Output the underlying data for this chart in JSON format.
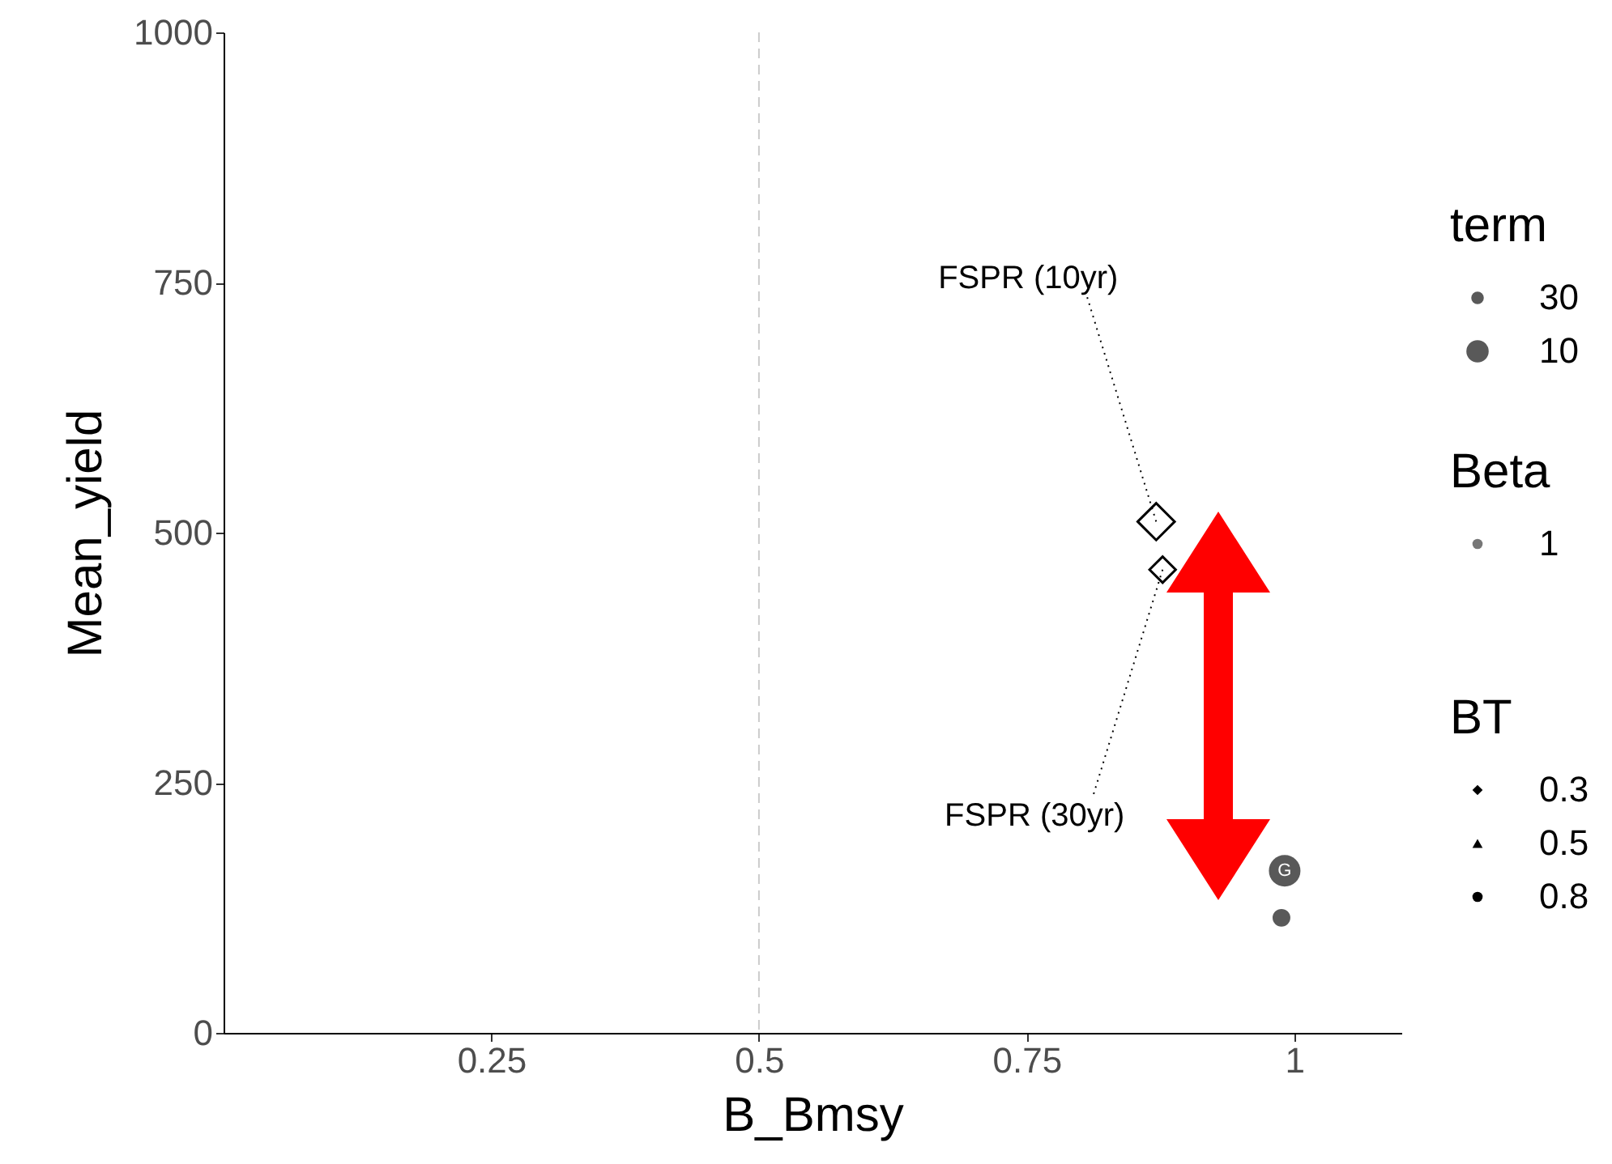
{
  "chart_data": {
    "type": "scatter",
    "xlabel": "B_Bmsy",
    "ylabel": "Mean_yield",
    "xlim": [
      0,
      1.1
    ],
    "xticks": [
      0.25,
      0.5,
      0.75,
      1
    ],
    "ylim": [
      0,
      1000
    ],
    "yticks": [
      0,
      250,
      500,
      750,
      1000
    ],
    "grid": false,
    "legend": "right",
    "legend_title": "term",
    "ref_lines": [
      {
        "axis": "x",
        "value": 0.5,
        "color": "#cccccc",
        "line_style": "dashed"
      }
    ],
    "series": [
      {
        "name": "FSPR (10yr)",
        "marker": "diamond",
        "color": "#000000",
        "x": [
          0.871
        ],
        "values": [
          511
        ]
      },
      {
        "name": "FSPR (30yr)",
        "marker": "diamond",
        "color": "#000000",
        "x": [
          0.877
        ],
        "values": [
          463
        ]
      },
      {
        "name": "30",
        "marker": "circle",
        "color": "#595959",
        "x": [
          0.988
        ],
        "values": [
          115
        ]
      },
      {
        "name": "10",
        "marker": "circle",
        "color": "#595959",
        "x": [
          0.991
        ],
        "values": [
          162
        ]
      }
    ],
    "annotations": [
      {
        "text": "G",
        "x": 0.991,
        "y": 162
      },
      "Beta",
      "1",
      "BT",
      "0.3",
      "0.5",
      "0.8"
    ]
  }
}
